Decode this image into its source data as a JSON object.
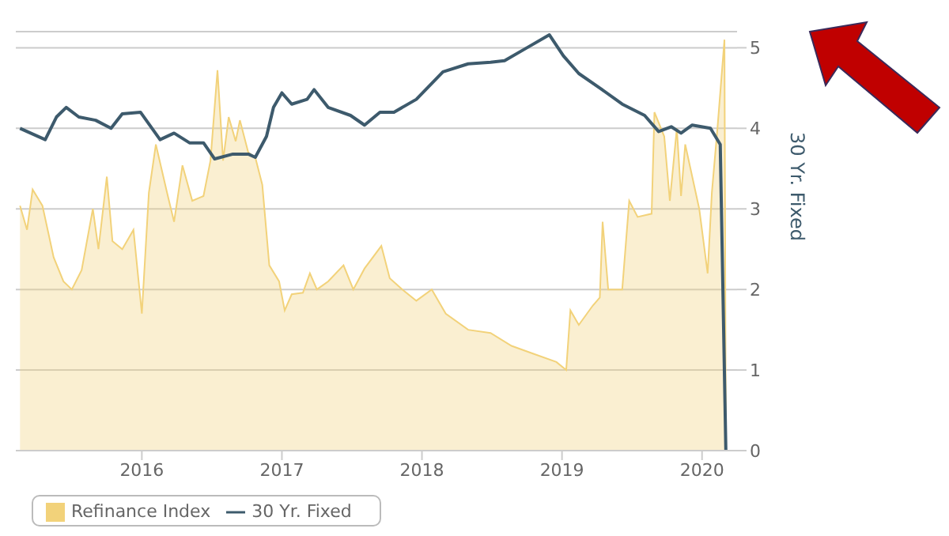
{
  "chart_data": {
    "type": "area",
    "ylabel": "30 Yr. Fixed",
    "xlim": [
      2015.1,
      2020.25
    ],
    "xticks": [
      2016,
      2017,
      2018,
      2019,
      2020
    ],
    "ylim": [
      0,
      5.2
    ],
    "yticks": [
      0,
      1,
      2,
      3,
      4,
      5
    ],
    "grid": "y",
    "legend": "bottom left",
    "marker": "none",
    "series": [
      {
        "name": "Refinance Index",
        "color": "#f2d27a",
        "x": [
          2015.13,
          2015.18,
          2015.22,
          2015.29,
          2015.37,
          2015.44,
          2015.5,
          2015.57,
          2015.65,
          2015.69,
          2015.75,
          2015.79,
          2015.86,
          2015.94,
          2016.0,
          2016.05,
          2016.1,
          2016.18,
          2016.23,
          2016.29,
          2016.36,
          2016.44,
          2016.49,
          2016.54,
          2016.58,
          2016.62,
          2016.67,
          2016.7,
          2016.76,
          2016.81,
          2016.86,
          2016.91,
          2016.98,
          2017.02,
          2017.07,
          2017.15,
          2017.2,
          2017.25,
          2017.33,
          2017.44,
          2017.51,
          2017.59,
          2017.71,
          2017.77,
          2017.86,
          2017.96,
          2018.07,
          2018.17,
          2018.33,
          2018.49,
          2018.64,
          2018.8,
          2018.96,
          2019.03,
          2019.06,
          2019.12,
          2019.22,
          2019.27,
          2019.29,
          2019.33,
          2019.43,
          2019.48,
          2019.54,
          2019.64,
          2019.66,
          2019.73,
          2019.77,
          2019.82,
          2019.85,
          2019.88,
          2019.93,
          2019.98,
          2020.04,
          2020.07,
          2020.11,
          2020.16,
          2020.17
        ],
        "values": [
          3.04,
          2.74,
          3.24,
          3.04,
          2.4,
          2.1,
          2.0,
          2.24,
          3.0,
          2.5,
          3.4,
          2.6,
          2.5,
          2.74,
          1.7,
          3.2,
          3.8,
          3.2,
          2.84,
          3.54,
          3.1,
          3.16,
          3.6,
          4.72,
          3.6,
          4.14,
          3.84,
          4.1,
          3.7,
          3.64,
          3.3,
          2.3,
          2.1,
          1.74,
          1.94,
          1.96,
          2.2,
          2.0,
          2.1,
          2.3,
          2.0,
          2.26,
          2.54,
          2.14,
          2.0,
          1.86,
          2.0,
          1.7,
          1.5,
          1.46,
          1.3,
          1.2,
          1.1,
          1.0,
          1.74,
          1.56,
          1.8,
          1.9,
          2.84,
          2.0,
          2.0,
          3.1,
          2.9,
          2.94,
          4.2,
          3.9,
          3.1,
          4.0,
          3.16,
          3.8,
          3.4,
          3.0,
          2.2,
          3.2,
          4.0,
          5.1,
          0
        ]
      },
      {
        "name": "30 Yr. Fixed",
        "type": "line",
        "color": "#3d5a6c",
        "x": [
          2015.13,
          2015.31,
          2015.39,
          2015.46,
          2015.55,
          2015.67,
          2015.78,
          2015.86,
          2015.99,
          2016.13,
          2016.23,
          2016.34,
          2016.44,
          2016.52,
          2016.65,
          2016.76,
          2016.81,
          2016.89,
          2016.94,
          2017.0,
          2017.07,
          2017.18,
          2017.23,
          2017.33,
          2017.49,
          2017.59,
          2017.7,
          2017.8,
          2017.96,
          2018.15,
          2018.33,
          2018.49,
          2018.59,
          2018.75,
          2018.91,
          2019.01,
          2019.12,
          2019.27,
          2019.43,
          2019.59,
          2019.69,
          2019.78,
          2019.85,
          2019.93,
          2020.06,
          2020.13,
          2020.17
        ],
        "values": [
          4.0,
          3.86,
          4.14,
          4.26,
          4.14,
          4.1,
          4.0,
          4.18,
          4.2,
          3.86,
          3.94,
          3.82,
          3.82,
          3.62,
          3.68,
          3.68,
          3.64,
          3.9,
          4.26,
          4.44,
          4.3,
          4.36,
          4.48,
          4.26,
          4.16,
          4.04,
          4.2,
          4.2,
          4.36,
          4.7,
          4.8,
          4.82,
          4.84,
          5.0,
          5.16,
          4.9,
          4.68,
          4.5,
          4.3,
          4.16,
          3.96,
          4.02,
          3.94,
          4.04,
          4.0,
          3.8,
          0
        ]
      }
    ]
  }
}
